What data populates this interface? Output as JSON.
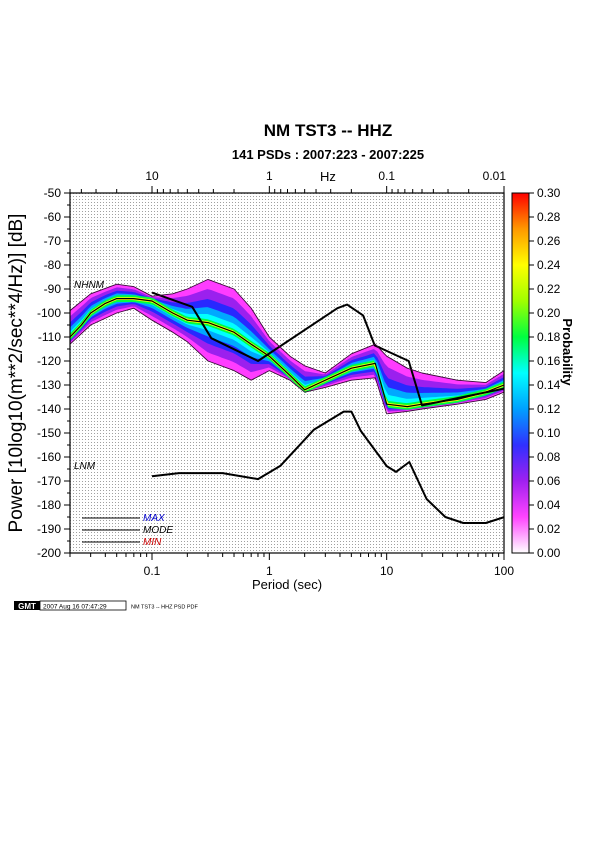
{
  "chart_data": {
    "type": "heatmap",
    "title": "NM TST3 -- HHZ",
    "subtitle": "141 PSDs : 2007:223 - 2007:225",
    "xlabel": "Period (sec)",
    "ylabel": "Power [10log10(m**2/sec**4/Hz)] [dB]",
    "top_axis_label": "Hz",
    "colorbar_label": "Probability",
    "x_scale": "log",
    "xlim": [
      0.02,
      100
    ],
    "ylim": [
      -200,
      -50
    ],
    "grid": true,
    "x_ticks": [
      0.1,
      1,
      10,
      100
    ],
    "x_tick_labels": [
      "0.1",
      "1",
      "10",
      "100"
    ],
    "top_ticks": [
      10,
      1,
      0.1,
      0.01
    ],
    "top_tick_labels": [
      "10",
      "1",
      "0.1",
      "0.01"
    ],
    "y_ticks": [
      -50,
      -60,
      -70,
      -80,
      -90,
      -100,
      -110,
      -120,
      -130,
      -140,
      -150,
      -160,
      -170,
      -180,
      -190,
      -200
    ],
    "y_tick_labels": [
      "-50",
      "-60",
      "-70",
      "-80",
      "-90",
      "-100",
      "-110",
      "-120",
      "-130",
      "-140",
      "-150",
      "-160",
      "-170",
      "-180",
      "-190",
      "-200"
    ],
    "colorbar_ticks": [
      0.3,
      0.28,
      0.26,
      0.24,
      0.22,
      0.2,
      0.18,
      0.16,
      0.14,
      0.12,
      0.1,
      0.08,
      0.06,
      0.04,
      0.02,
      0.0
    ],
    "colorbar_tick_labels": [
      "0.30",
      "0.28",
      "0.26",
      "0.24",
      "0.22",
      "0.20",
      "0.18",
      "0.16",
      "0.14",
      "0.12",
      "0.10",
      "0.08",
      "0.06",
      "0.04",
      "0.02",
      "0.00"
    ],
    "colorbar_range": [
      0,
      0.3
    ],
    "colormap": [
      "#ffffff",
      "#ff44ff",
      "#a020f0",
      "#3030ff",
      "#00a0ff",
      "#00ffff",
      "#00ff40",
      "#a0ff00",
      "#ffff00",
      "#ff9900",
      "#ff0000"
    ],
    "legend": {
      "items": [
        {
          "label": "MAX",
          "color": "#0000cc"
        },
        {
          "label": "MODE",
          "color": "#000000"
        },
        {
          "label": "MIN",
          "color": "#cc0000"
        }
      ]
    },
    "annotations": [
      "NHNM",
      "LNM"
    ],
    "series": [
      {
        "name": "NHNM",
        "x": [
          0.1,
          0.22,
          0.32,
          0.8,
          3.8,
          4.6,
          6.3,
          7.9,
          15.4,
          20,
          354.8
        ],
        "y": [
          -91.5,
          -97.4,
          -110.5,
          -120,
          -98,
          -96.5,
          -101,
          -113.5,
          -120,
          -138.5,
          -126
        ]
      },
      {
        "name": "LNM",
        "x": [
          0.1,
          0.17,
          0.4,
          0.8,
          1.24,
          2.4,
          4.3,
          5,
          6,
          10,
          12,
          15.6,
          21.9,
          31.6,
          45,
          70,
          101
        ],
        "y": [
          -168,
          -166.7,
          -166.7,
          -169.2,
          -163.7,
          -148.6,
          -141.1,
          -141.1,
          -149,
          -163.8,
          -166.2,
          -162.1,
          -177.5,
          -185,
          -187.5,
          -187.5,
          -185
        ]
      },
      {
        "name": "MODE",
        "x": [
          0.02,
          0.025,
          0.03,
          0.04,
          0.05,
          0.07,
          0.1,
          0.15,
          0.2,
          0.3,
          0.5,
          0.7,
          1,
          1.5,
          2,
          3,
          5,
          8,
          10,
          15,
          20,
          40,
          70,
          100
        ],
        "y": [
          -110,
          -105,
          -100,
          -96,
          -94,
          -94,
          -95,
          -100,
          -103,
          -104,
          -108,
          -113,
          -118,
          -126,
          -132,
          -128,
          -123,
          -121,
          -138,
          -139,
          -138,
          -136,
          -133,
          -130
        ]
      },
      {
        "name": "MAX",
        "x": [
          0.02,
          0.03,
          0.05,
          0.07,
          0.1,
          0.15,
          0.2,
          0.3,
          0.5,
          0.7,
          1,
          1.5,
          2,
          3,
          5,
          8,
          10,
          15,
          20,
          40,
          70,
          100
        ],
        "y": [
          -99,
          -92,
          -88,
          -89,
          -93,
          -92,
          -90,
          -86,
          -90,
          -98,
          -110,
          -118,
          -122,
          -125,
          -117,
          -113,
          -118,
          -123,
          -125,
          -128,
          -129,
          -124
        ]
      },
      {
        "name": "MIN",
        "x": [
          0.02,
          0.03,
          0.05,
          0.07,
          0.1,
          0.15,
          0.2,
          0.3,
          0.5,
          0.7,
          1,
          1.5,
          2,
          3,
          5,
          8,
          10,
          15,
          20,
          40,
          70,
          100
        ],
        "y": [
          -113,
          -105,
          -100,
          -98,
          -103,
          -108,
          -112,
          -120,
          -124,
          -128,
          -124,
          -128,
          -133,
          -131,
          -128,
          -127,
          -142,
          -141,
          -140,
          -138,
          -136,
          -133
        ]
      }
    ]
  },
  "footer": {
    "logo_text": "GMT",
    "timestamp": "2007 Aug 16 07:47:29",
    "caption": "NM TST3 -- HHZ PSD PDF"
  }
}
